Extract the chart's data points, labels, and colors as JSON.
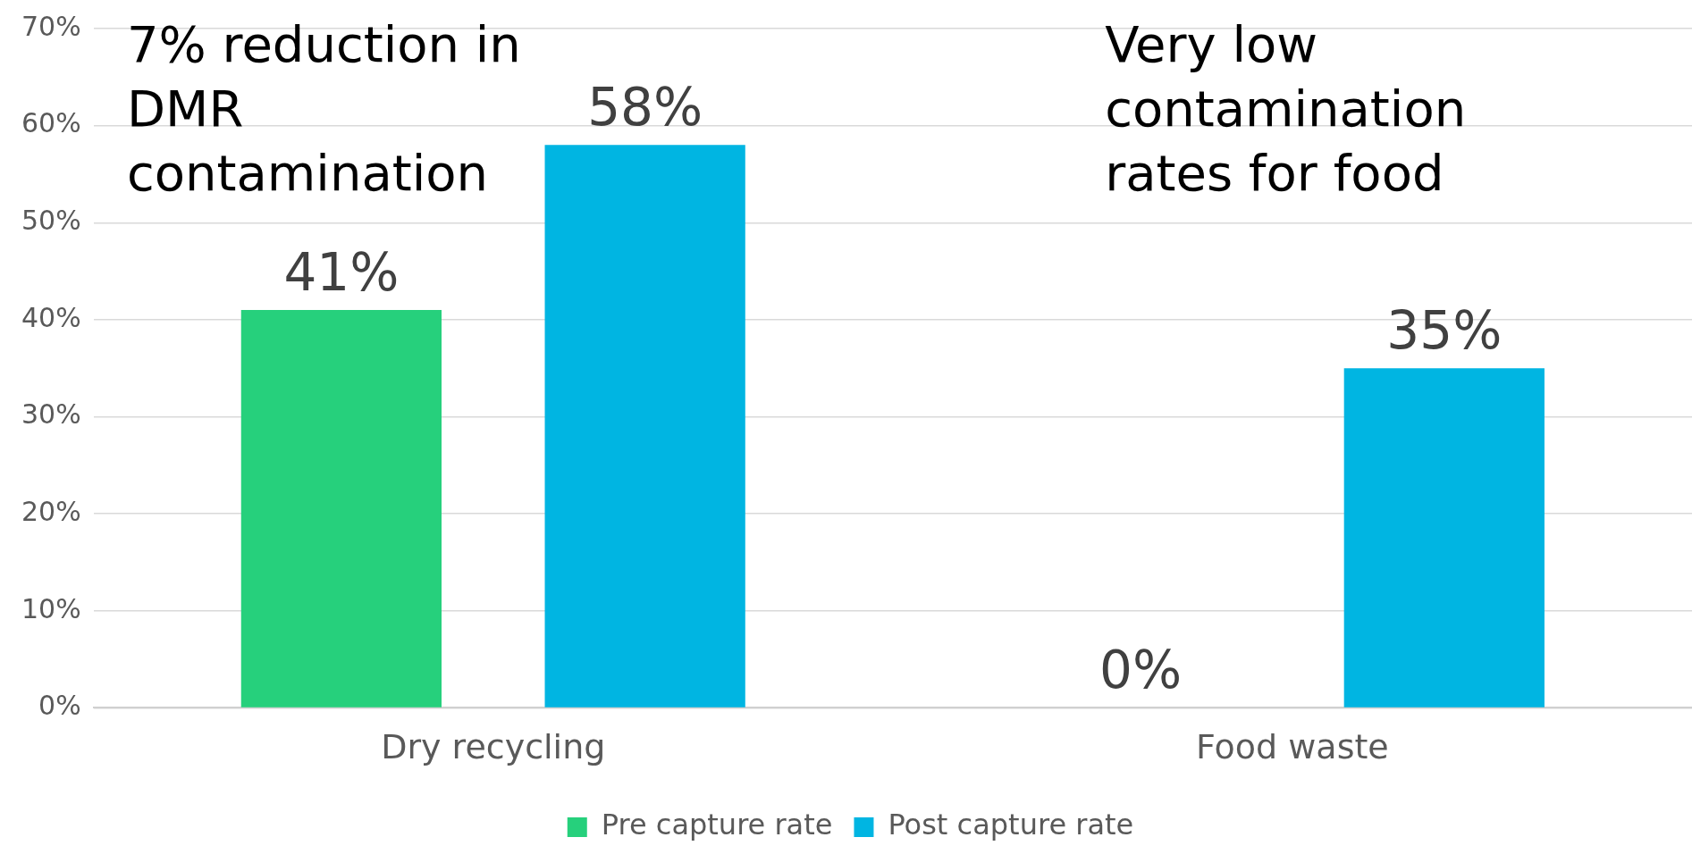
{
  "chart_data": {
    "type": "bar",
    "categories": [
      "Dry recycling",
      "Food waste"
    ],
    "series": [
      {
        "name": "Pre capture rate",
        "color": "#26d07c",
        "values": [
          41,
          0
        ]
      },
      {
        "name": "Post capture rate",
        "color": "#00b5e2",
        "values": [
          58,
          35
        ]
      }
    ],
    "ylim": [
      0,
      70
    ],
    "yticks": [
      {
        "value": 0,
        "label": "0%"
      },
      {
        "value": 10,
        "label": "10%"
      },
      {
        "value": 20,
        "label": "20%"
      },
      {
        "value": 30,
        "label": "30%"
      },
      {
        "value": 40,
        "label": "40%"
      },
      {
        "value": 50,
        "label": "50%"
      },
      {
        "value": 60,
        "label": "60%"
      },
      {
        "value": 70,
        "label": "70%"
      }
    ],
    "value_labels": [
      [
        "41%",
        "0%"
      ],
      [
        "58%",
        "35%"
      ]
    ],
    "annotations": [
      "7% reduction in DMR contamination",
      "Very low contamination rates for food"
    ],
    "grid": "y",
    "legend": "bottom"
  }
}
